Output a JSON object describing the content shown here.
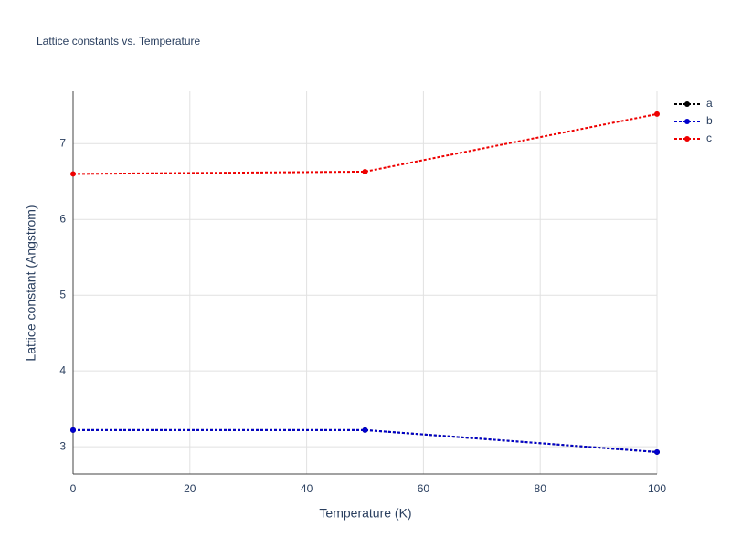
{
  "chart_data": {
    "type": "line",
    "title": "Lattice constants vs. Temperature",
    "x_label": "Temperature (K)",
    "y_label": "Lattice constant (Angstrom)",
    "x": [
      0,
      50,
      100
    ],
    "series": [
      {
        "name": "a",
        "color": "#000000",
        "values": [
          3.22,
          3.22,
          2.93
        ]
      },
      {
        "name": "b",
        "color": "#0000cc",
        "values": [
          3.22,
          3.22,
          2.93
        ]
      },
      {
        "name": "c",
        "color": "#ee0000",
        "values": [
          6.6,
          6.63,
          7.39
        ]
      }
    ],
    "xlim": [
      0,
      100
    ],
    "xticks": [
      0,
      20,
      40,
      60,
      80,
      100
    ],
    "ylim": [
      2.64,
      7.69
    ],
    "yticks": [
      3,
      4,
      5,
      6,
      7
    ],
    "grid": true,
    "legend": "top-right"
  }
}
